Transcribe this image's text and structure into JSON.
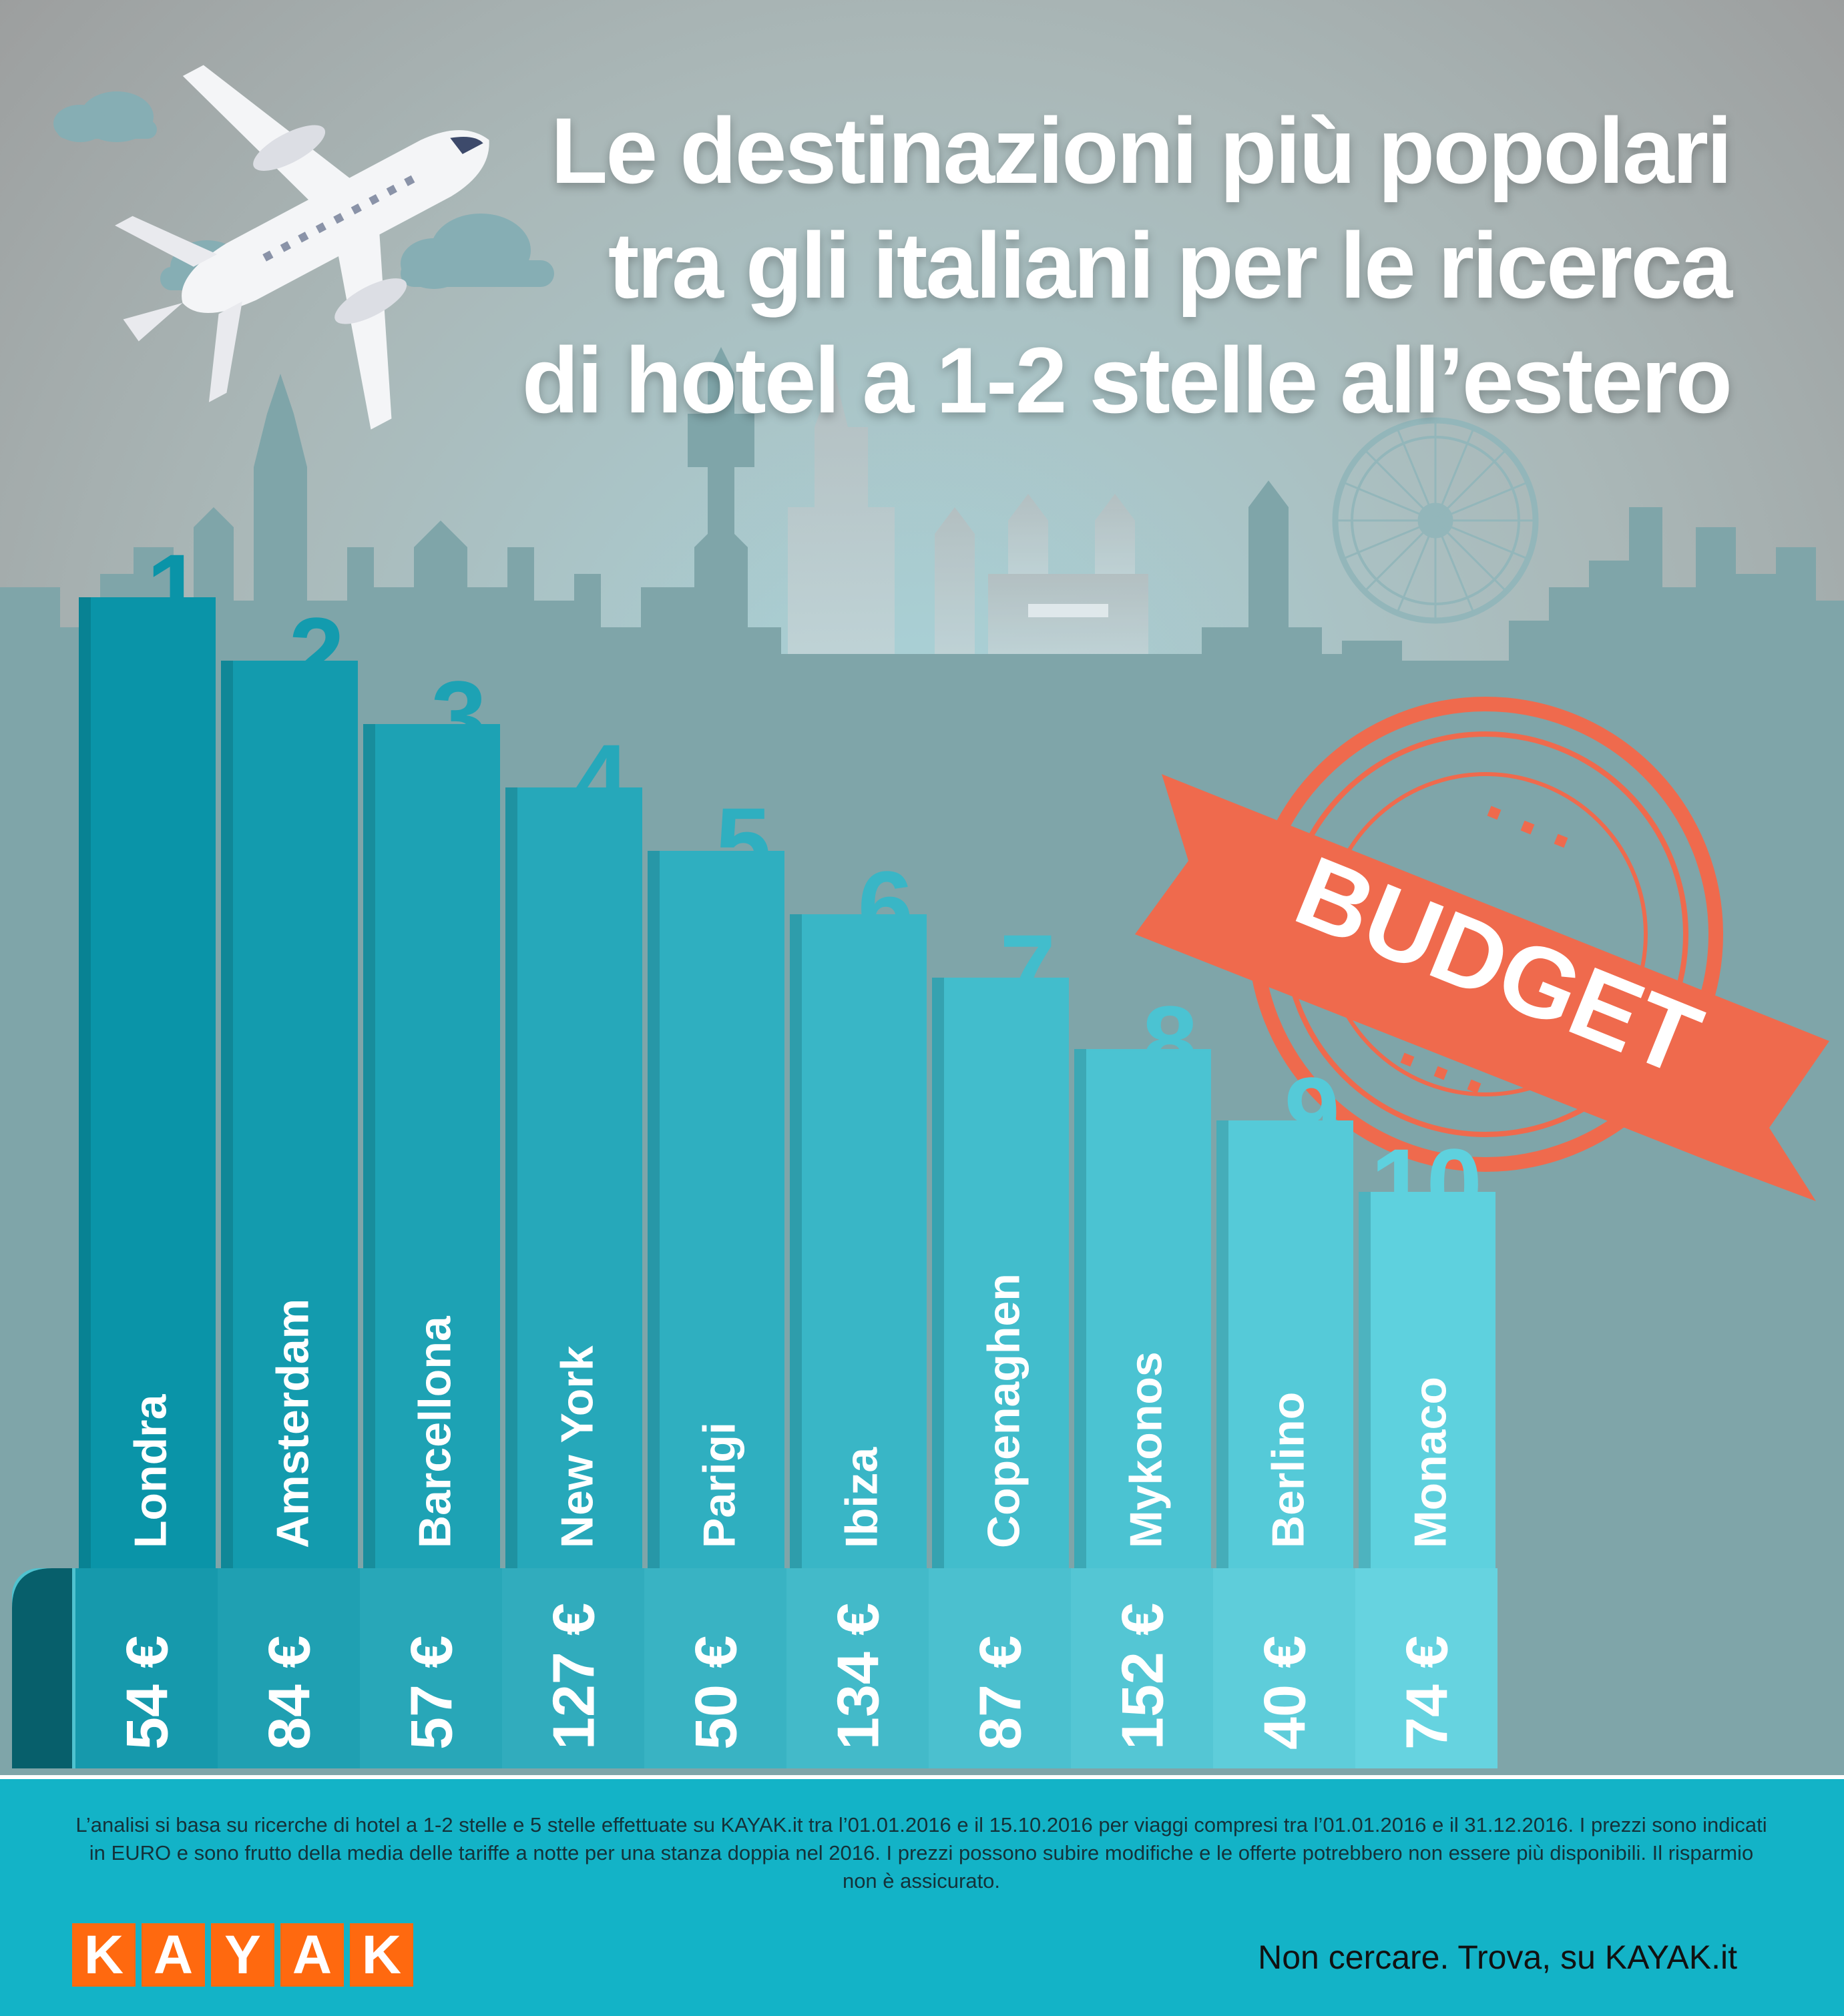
{
  "title_lines": [
    "Le destinazioni più popolari",
    "tra gli italiani per le ricerca",
    "di hotel a 1-2 stelle all’estero"
  ],
  "stamp_label": "BUDGET",
  "colors": {
    "sky_top": "#9d9d9d",
    "sky_bottom": "#a9d3d9",
    "skyline": "#7fa5a9",
    "bar_dark": "#0a94a8",
    "bar_light": "#5ed1de",
    "stamp": "#ef6a4d",
    "footer": "#13b3c7",
    "kayak_orange": "#ff690f"
  },
  "chart_data": {
    "type": "bar",
    "title": "Le destinazioni più popolari tra gli italiani per le ricerca di hotel a 1-2 stelle all’estero",
    "categories": [
      "Londra",
      "Amsterdam",
      "Barcellona",
      "New York",
      "Parigi",
      "Ibiza",
      "Copenaghen",
      "Mykonos",
      "Berlino",
      "Monaco"
    ],
    "ranks": [
      "1",
      "2",
      "3",
      "4",
      "5",
      "6",
      "7",
      "8",
      "9",
      "10"
    ],
    "price_labels": [
      "54 €",
      "84 €",
      "57 €",
      "127 €",
      "50 €",
      "134 €",
      "87 €",
      "152 €",
      "40 €",
      "74 €"
    ],
    "series": [
      {
        "values": [
          54,
          84,
          57,
          127,
          50,
          134,
          87,
          152,
          40,
          74
        ]
      }
    ],
    "unit": "€"
  },
  "footer": {
    "note": "L’analisi si basa su ricerche di hotel a 1-2 stelle e 5 stelle effettuate su KAYAK.it tra l’01.01.2016 e il 15.10.2016 per viaggi compresi tra l’01.01.2016 e il 31.12.2016. I prezzi sono indicati in EURO e sono frutto della media delle tariffe a notte per una stanza doppia nel 2016. I prezzi possono subire modifiche e le offerte potrebbero non essere più disponibili. Il risparmio non è assicurato.",
    "logo_letters": [
      "K",
      "A",
      "Y",
      "A",
      "K"
    ],
    "tagline": "Non cercare. Trova, su KAYAK.it"
  }
}
